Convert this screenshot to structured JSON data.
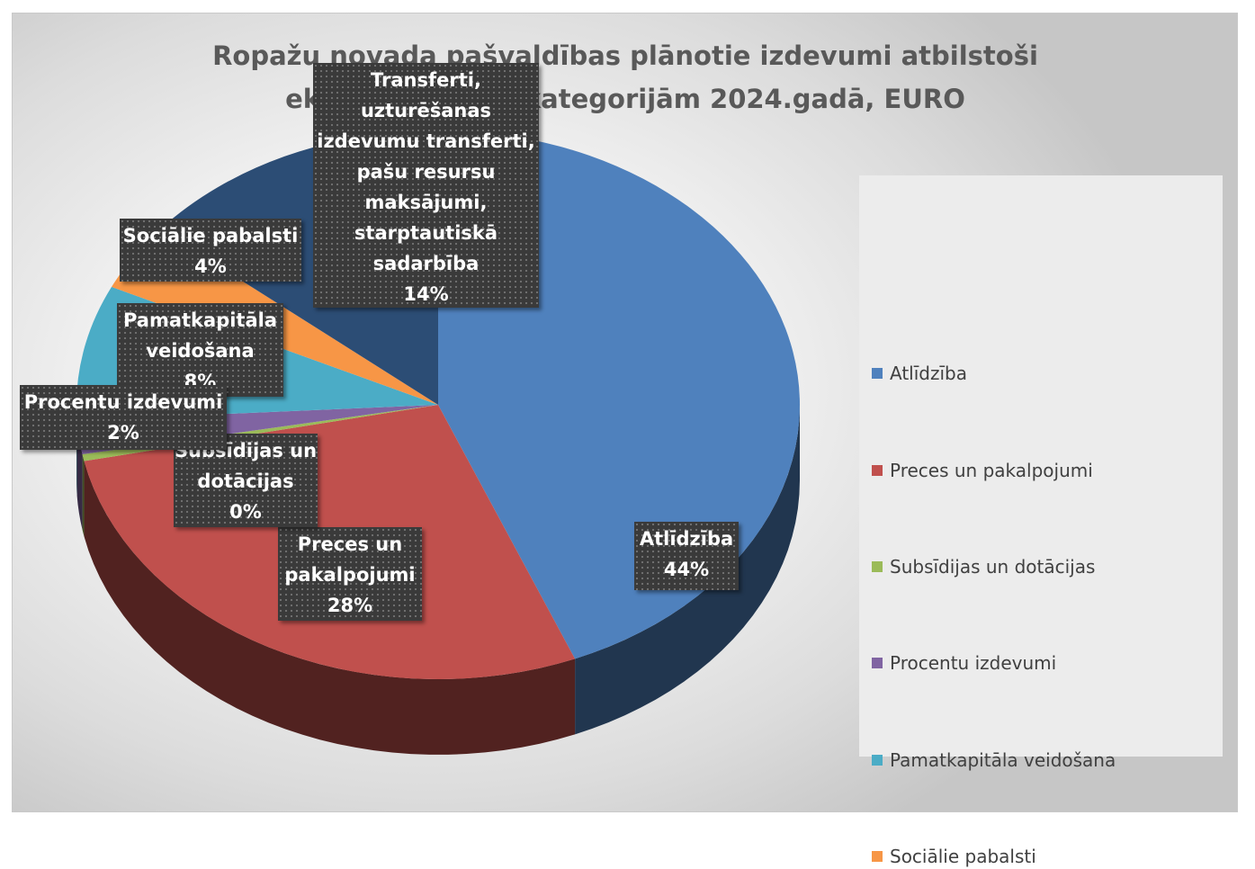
{
  "chart_data": {
    "type": "pie",
    "title": "Ropažu novada pašvaldības plānotie izdevumi atbilstoši ekonomiskajām kategorijām 2024.gadā, EURO",
    "unit": "EURO",
    "slices": [
      {
        "label": "Atlīdzība",
        "percent": 44,
        "percent_label": "44%",
        "color": "#4f81bd"
      },
      {
        "label": "Preces un pakalpojumi",
        "label_lines": [
          "Preces un",
          "pakalpojumi"
        ],
        "percent": 28,
        "percent_label": "28%",
        "color": "#c0504d"
      },
      {
        "label": "Subsīdijas un dotācijas",
        "label_lines": [
          "Subsīdijas un",
          "dotācijas"
        ],
        "percent": 0.4,
        "percent_label": "0%",
        "color": "#9bbb59"
      },
      {
        "label": "Procentu izdevumi",
        "percent": 2,
        "percent_label": "2%",
        "color": "#8064a2"
      },
      {
        "label": "Pamatkapitāla veidošana",
        "label_lines": [
          "Pamatkapitāla",
          "veidošana"
        ],
        "percent": 8,
        "percent_label": "8%",
        "color": "#4bacc6"
      },
      {
        "label": "Sociālie pabalsti",
        "percent": 4,
        "percent_label": "4%",
        "color": "#f79646"
      },
      {
        "label": "Transferti, uzturēšanas izdevumu transferti, pašu resursu maksājumi, starptautiskā sadarbība",
        "label_lines": [
          "Transferti,",
          "uzturēšanas",
          "izdevumu transferti,",
          "pašu resursu",
          "maksājumi,",
          "starptautiskā",
          "sadarbība"
        ],
        "percent": 14,
        "percent_label": "14%",
        "color": "#2c4d75"
      }
    ],
    "legend": {
      "position": "right",
      "entries": [
        "Atlīdzība",
        "Preces un pakalpojumi",
        "Subsīdijas un dotācijas",
        "Procentu izdevumi",
        "Pamatkapitāla veidošana",
        "Sociālie pabalsti"
      ]
    },
    "style": "3d-pie"
  }
}
